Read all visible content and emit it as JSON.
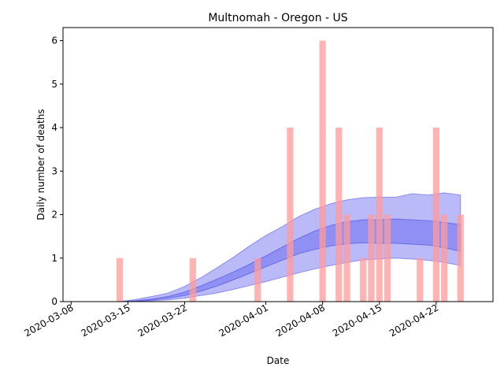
{
  "chart_data": {
    "type": "bar",
    "title": "Multnomah - Oregon - US",
    "xlabel": "Date",
    "ylabel": "Daily number of deaths",
    "x_ticks": [
      "2020-03-08",
      "2020-03-15",
      "2020-03-22",
      "2020-04-01",
      "2020-04-08",
      "2020-04-15",
      "2020-04-22"
    ],
    "y_ticks": [
      "0",
      "1",
      "2",
      "3",
      "4",
      "5",
      "6"
    ],
    "xlim": [
      "2020-03-07",
      "2020-04-29"
    ],
    "ylim": [
      0,
      6.3
    ],
    "grid": false,
    "colors": {
      "bars": "#ff9999",
      "outer_band": "#8c8cf5",
      "inner_band": "#6b6bf0",
      "axis": "#000000"
    },
    "daily_deaths": [
      {
        "date": "2020-03-14",
        "deaths": 1
      },
      {
        "date": "2020-03-23",
        "deaths": 1
      },
      {
        "date": "2020-03-31",
        "deaths": 1
      },
      {
        "date": "2020-04-04",
        "deaths": 4
      },
      {
        "date": "2020-04-08",
        "deaths": 6
      },
      {
        "date": "2020-04-10",
        "deaths": 4
      },
      {
        "date": "2020-04-11",
        "deaths": 2
      },
      {
        "date": "2020-04-13",
        "deaths": 1
      },
      {
        "date": "2020-04-14",
        "deaths": 2
      },
      {
        "date": "2020-04-15",
        "deaths": 4
      },
      {
        "date": "2020-04-16",
        "deaths": 2
      },
      {
        "date": "2020-04-20",
        "deaths": 1
      },
      {
        "date": "2020-04-22",
        "deaths": 4
      },
      {
        "date": "2020-04-23",
        "deaths": 2
      },
      {
        "date": "2020-04-25",
        "deaths": 2
      }
    ],
    "bands": {
      "dates": [
        "2020-03-14",
        "2020-03-16",
        "2020-03-18",
        "2020-03-20",
        "2020-03-22",
        "2020-03-24",
        "2020-03-26",
        "2020-03-28",
        "2020-03-30",
        "2020-04-01",
        "2020-04-03",
        "2020-04-05",
        "2020-04-07",
        "2020-04-09",
        "2020-04-11",
        "2020-04-13",
        "2020-04-15",
        "2020-04-17",
        "2020-04-19",
        "2020-04-21",
        "2020-04-23",
        "2020-04-25"
      ],
      "outer_upper": [
        0.0,
        0.05,
        0.12,
        0.2,
        0.35,
        0.55,
        0.78,
        1.02,
        1.28,
        1.52,
        1.72,
        1.95,
        2.12,
        2.25,
        2.34,
        2.39,
        2.4,
        2.4,
        2.48,
        2.45,
        2.5,
        2.45
      ],
      "inner_upper": [
        0.0,
        0.02,
        0.06,
        0.12,
        0.22,
        0.36,
        0.52,
        0.68,
        0.86,
        1.05,
        1.25,
        1.45,
        1.62,
        1.75,
        1.84,
        1.88,
        1.88,
        1.9,
        1.88,
        1.86,
        1.82,
        1.77
      ],
      "inner_lower": [
        0.0,
        0.01,
        0.04,
        0.08,
        0.14,
        0.24,
        0.36,
        0.5,
        0.65,
        0.8,
        0.95,
        1.1,
        1.2,
        1.28,
        1.33,
        1.35,
        1.34,
        1.34,
        1.32,
        1.3,
        1.24,
        1.15
      ],
      "outer_lower": [
        0.0,
        0.005,
        0.02,
        0.04,
        0.08,
        0.14,
        0.2,
        0.28,
        0.37,
        0.46,
        0.56,
        0.66,
        0.75,
        0.83,
        0.9,
        0.96,
        0.98,
        1.0,
        0.98,
        0.95,
        0.9,
        0.83
      ]
    }
  }
}
